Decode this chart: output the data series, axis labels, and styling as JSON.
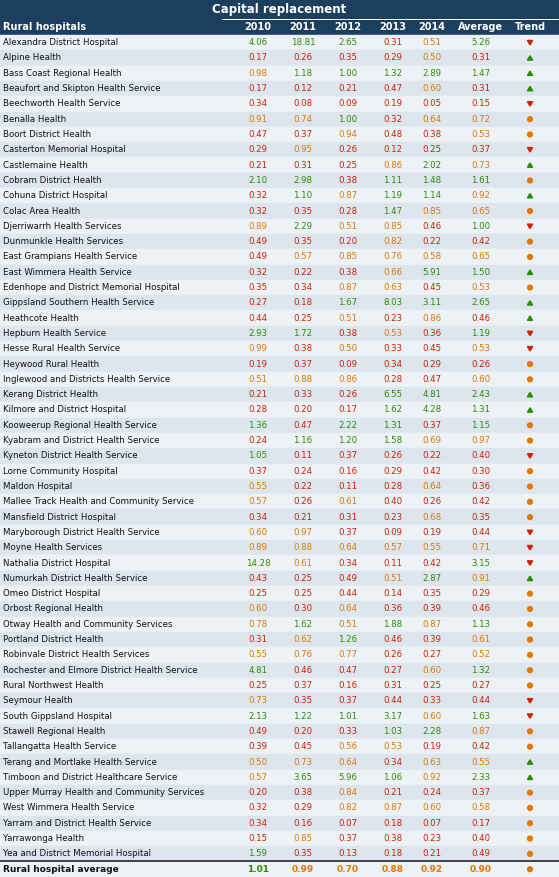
{
  "title": "Capital replacement",
  "col_header": [
    "2010",
    "2011",
    "2012",
    "2013",
    "2014",
    "Average",
    "Trend"
  ],
  "row_label": "Rural hospitals",
  "rows": [
    {
      "name": "Alexandra District Hospital",
      "vals": [
        4.06,
        18.81,
        2.65,
        0.31,
        0.51,
        5.26
      ],
      "trend": "down_red"
    },
    {
      "name": "Alpine Health",
      "vals": [
        0.17,
        0.26,
        0.35,
        0.29,
        0.5,
        0.31
      ],
      "trend": "up_green"
    },
    {
      "name": "Bass Coast Regional Health",
      "vals": [
        0.98,
        1.18,
        1.0,
        1.32,
        2.89,
        1.47
      ],
      "trend": "up_green"
    },
    {
      "name": "Beaufort and Skipton Health Service",
      "vals": [
        0.17,
        0.12,
        0.21,
        0.47,
        0.6,
        0.31
      ],
      "trend": "up_green"
    },
    {
      "name": "Beechworth Health Service",
      "vals": [
        0.34,
        0.08,
        0.09,
        0.19,
        0.05,
        0.15
      ],
      "trend": "down_red"
    },
    {
      "name": "Benalla Health",
      "vals": [
        0.91,
        0.74,
        1.0,
        0.32,
        0.64,
        0.72
      ],
      "trend": "circle_orange"
    },
    {
      "name": "Boort District Health",
      "vals": [
        0.47,
        0.37,
        0.94,
        0.48,
        0.38,
        0.53
      ],
      "trend": "circle_orange"
    },
    {
      "name": "Casterton Memorial Hospital",
      "vals": [
        0.29,
        0.95,
        0.26,
        0.12,
        0.25,
        0.37
      ],
      "trend": "down_red"
    },
    {
      "name": "Castlemaine Health",
      "vals": [
        0.21,
        0.31,
        0.25,
        0.86,
        2.02,
        0.73
      ],
      "trend": "up_green"
    },
    {
      "name": "Cobram District Health",
      "vals": [
        2.1,
        2.98,
        0.38,
        1.11,
        1.48,
        1.61
      ],
      "trend": "circle_orange"
    },
    {
      "name": "Cohuna District Hospital",
      "vals": [
        0.32,
        1.1,
        0.87,
        1.19,
        1.14,
        0.92
      ],
      "trend": "up_green"
    },
    {
      "name": "Colac Area Health",
      "vals": [
        0.32,
        0.35,
        0.28,
        1.47,
        0.85,
        0.65
      ],
      "trend": "circle_orange"
    },
    {
      "name": "Djerriwarrh Health Services",
      "vals": [
        0.89,
        2.29,
        0.51,
        0.85,
        0.46,
        1.0
      ],
      "trend": "down_red"
    },
    {
      "name": "Dunmunkle Health Services",
      "vals": [
        0.49,
        0.35,
        0.2,
        0.82,
        0.22,
        0.42
      ],
      "trend": "circle_orange"
    },
    {
      "name": "East Grampians Health Service",
      "vals": [
        0.49,
        0.57,
        0.85,
        0.76,
        0.58,
        0.65
      ],
      "trend": "circle_orange"
    },
    {
      "name": "East Wimmera Health Service",
      "vals": [
        0.32,
        0.22,
        0.38,
        0.66,
        5.91,
        1.5
      ],
      "trend": "up_green"
    },
    {
      "name": "Edenhope and District Memorial Hospital",
      "vals": [
        0.35,
        0.34,
        0.87,
        0.63,
        0.45,
        0.53
      ],
      "trend": "circle_orange"
    },
    {
      "name": "Gippsland Southern Health Service",
      "vals": [
        0.27,
        0.18,
        1.67,
        8.03,
        3.11,
        2.65
      ],
      "trend": "up_green"
    },
    {
      "name": "Heathcote Health",
      "vals": [
        0.44,
        0.25,
        0.51,
        0.23,
        0.86,
        0.46
      ],
      "trend": "up_green"
    },
    {
      "name": "Hepburn Health Service",
      "vals": [
        2.93,
        1.72,
        0.38,
        0.53,
        0.36,
        1.19
      ],
      "trend": "down_red"
    },
    {
      "name": "Hesse Rural Health Service",
      "vals": [
        0.99,
        0.38,
        0.5,
        0.33,
        0.45,
        0.53
      ],
      "trend": "down_red"
    },
    {
      "name": "Heywood Rural Health",
      "vals": [
        0.19,
        0.37,
        0.09,
        0.34,
        0.29,
        0.26
      ],
      "trend": "circle_orange"
    },
    {
      "name": "Inglewood and Districts Health Service",
      "vals": [
        0.51,
        0.88,
        0.86,
        0.28,
        0.47,
        0.6
      ],
      "trend": "circle_orange"
    },
    {
      "name": "Kerang District Health",
      "vals": [
        0.21,
        0.33,
        0.26,
        6.55,
        4.81,
        2.43
      ],
      "trend": "up_green"
    },
    {
      "name": "Kilmore and District Hospital",
      "vals": [
        0.28,
        0.2,
        0.17,
        1.62,
        4.28,
        1.31
      ],
      "trend": "up_green"
    },
    {
      "name": "Kooweerup Regional Health Service",
      "vals": [
        1.36,
        0.47,
        2.22,
        1.31,
        0.37,
        1.15
      ],
      "trend": "circle_orange"
    },
    {
      "name": "Kyabram and District Health Service",
      "vals": [
        0.24,
        1.16,
        1.2,
        1.58,
        0.69,
        0.97
      ],
      "trend": "circle_orange"
    },
    {
      "name": "Kyneton District Health Service",
      "vals": [
        1.05,
        0.11,
        0.37,
        0.26,
        0.22,
        0.4
      ],
      "trend": "down_red"
    },
    {
      "name": "Lorne Community Hospital",
      "vals": [
        0.37,
        0.24,
        0.16,
        0.29,
        0.42,
        0.3
      ],
      "trend": "circle_orange"
    },
    {
      "name": "Maldon Hospital",
      "vals": [
        0.55,
        0.22,
        0.11,
        0.28,
        0.64,
        0.36
      ],
      "trend": "circle_orange"
    },
    {
      "name": "Mallee Track Health and Community Service",
      "vals": [
        0.57,
        0.26,
        0.61,
        0.4,
        0.26,
        0.42
      ],
      "trend": "circle_orange"
    },
    {
      "name": "Mansfield District Hospital",
      "vals": [
        0.34,
        0.21,
        0.31,
        0.23,
        0.68,
        0.35
      ],
      "trend": "circle_orange"
    },
    {
      "name": "Maryborough District Health Service",
      "vals": [
        0.6,
        0.97,
        0.37,
        0.09,
        0.19,
        0.44
      ],
      "trend": "down_red"
    },
    {
      "name": "Moyne Health Services",
      "vals": [
        0.89,
        0.88,
        0.64,
        0.57,
        0.55,
        0.71
      ],
      "trend": "down_red"
    },
    {
      "name": "Nathalia District Hospital",
      "vals": [
        14.28,
        0.61,
        0.34,
        0.11,
        0.42,
        3.15
      ],
      "trend": "down_red"
    },
    {
      "name": "Numurkah District Health Service",
      "vals": [
        0.43,
        0.25,
        0.49,
        0.51,
        2.87,
        0.91
      ],
      "trend": "up_green"
    },
    {
      "name": "Omeo District Hospital",
      "vals": [
        0.25,
        0.25,
        0.44,
        0.14,
        0.35,
        0.29
      ],
      "trend": "circle_orange"
    },
    {
      "name": "Orbost Regional Health",
      "vals": [
        0.6,
        0.3,
        0.64,
        0.36,
        0.39,
        0.46
      ],
      "trend": "circle_orange"
    },
    {
      "name": "Otway Health and Community Services",
      "vals": [
        0.78,
        1.62,
        0.51,
        1.88,
        0.87,
        1.13
      ],
      "trend": "circle_orange"
    },
    {
      "name": "Portland District Health",
      "vals": [
        0.31,
        0.62,
        1.26,
        0.46,
        0.39,
        0.61
      ],
      "trend": "circle_orange"
    },
    {
      "name": "Robinvale District Health Services",
      "vals": [
        0.55,
        0.76,
        0.77,
        0.26,
        0.27,
        0.52
      ],
      "trend": "circle_orange"
    },
    {
      "name": "Rochester and Elmore District Health Service",
      "vals": [
        4.81,
        0.46,
        0.47,
        0.27,
        0.6,
        1.32
      ],
      "trend": "circle_orange"
    },
    {
      "name": "Rural Northwest Health",
      "vals": [
        0.25,
        0.37,
        0.16,
        0.31,
        0.25,
        0.27
      ],
      "trend": "circle_orange"
    },
    {
      "name": "Seymour Health",
      "vals": [
        0.73,
        0.35,
        0.37,
        0.44,
        0.33,
        0.44
      ],
      "trend": "down_red"
    },
    {
      "name": "South Gippsland Hospital",
      "vals": [
        2.13,
        1.22,
        1.01,
        3.17,
        0.6,
        1.63
      ],
      "trend": "down_red"
    },
    {
      "name": "Stawell Regional Health",
      "vals": [
        0.49,
        0.2,
        0.33,
        1.03,
        2.28,
        0.87
      ],
      "trend": "circle_orange"
    },
    {
      "name": "Tallangatta Health Service",
      "vals": [
        0.39,
        0.45,
        0.56,
        0.53,
        0.19,
        0.42
      ],
      "trend": "circle_orange"
    },
    {
      "name": "Terang and Mortlake Health Service",
      "vals": [
        0.5,
        0.73,
        0.64,
        0.34,
        0.63,
        0.55
      ],
      "trend": "up_green"
    },
    {
      "name": "Timboon and District Healthcare Service",
      "vals": [
        0.57,
        3.65,
        5.96,
        1.06,
        0.92,
        2.33
      ],
      "trend": "up_green"
    },
    {
      "name": "Upper Murray Health and Community Services",
      "vals": [
        0.2,
        0.38,
        0.84,
        0.21,
        0.24,
        0.37
      ],
      "trend": "circle_orange"
    },
    {
      "name": "West Wimmera Health Service",
      "vals": [
        0.32,
        0.29,
        0.82,
        0.87,
        0.6,
        0.58
      ],
      "trend": "circle_orange"
    },
    {
      "name": "Yarram and District Health Service",
      "vals": [
        0.34,
        0.16,
        0.07,
        0.18,
        0.07,
        0.17
      ],
      "trend": "circle_orange"
    },
    {
      "name": "Yarrawonga Health",
      "vals": [
        0.15,
        0.85,
        0.37,
        0.38,
        0.23,
        0.4
      ],
      "trend": "circle_orange"
    },
    {
      "name": "Yea and District Memorial Hospital",
      "vals": [
        1.59,
        0.35,
        0.13,
        0.18,
        0.21,
        0.49
      ],
      "trend": "circle_orange"
    }
  ],
  "footer": {
    "name": "Rural hospital average",
    "vals": [
      1.01,
      0.99,
      0.7,
      0.88,
      0.92,
      0.9
    ],
    "trend": "circle_orange"
  }
}
